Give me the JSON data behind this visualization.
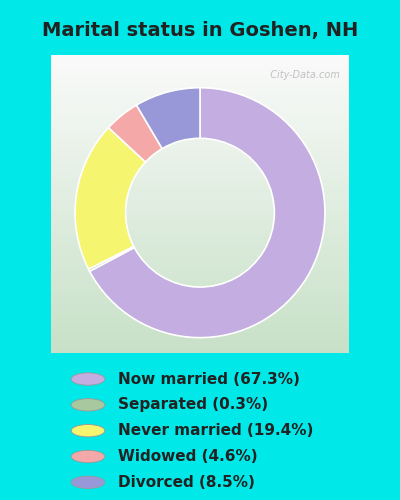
{
  "title": "Marital status in Goshen, NH",
  "slices": [
    {
      "label": "Now married (67.3%)",
      "value": 67.3,
      "color": "#c4ade0"
    },
    {
      "label": "Separated (0.3%)",
      "value": 0.3,
      "color": "#a8c8a0"
    },
    {
      "label": "Never married (19.4%)",
      "value": 19.4,
      "color": "#f5f570"
    },
    {
      "label": "Widowed (4.6%)",
      "value": 4.6,
      "color": "#f5a8a8"
    },
    {
      "label": "Divorced (8.5%)",
      "value": 8.5,
      "color": "#9898d8"
    }
  ],
  "bg_cyan": "#00e8e8",
  "bg_chart_top": "#e8f5e8",
  "bg_chart_bottom": "#c8e8c0",
  "title_color": "#222222",
  "title_fontsize": 14,
  "watermark": "  City-Data.com",
  "legend_fontsize": 11
}
